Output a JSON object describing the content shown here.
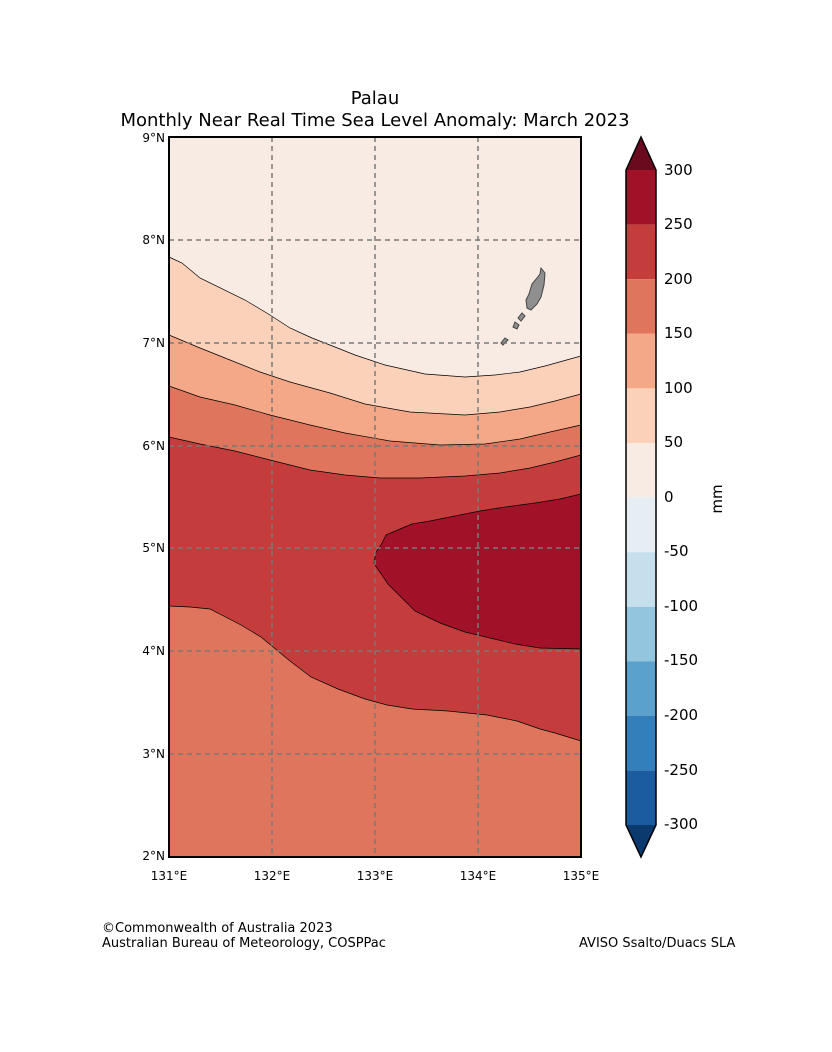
{
  "title_line1": "Palau",
  "title_line2": "Monthly Near Real Time Sea Level Anomaly: March 2023",
  "lat_ticks": [
    "9°N",
    "8°N",
    "7°N",
    "6°N",
    "5°N",
    "4°N",
    "3°N",
    "2°N"
  ],
  "lon_ticks": [
    "131°E",
    "132°E",
    "133°E",
    "134°E",
    "135°E"
  ],
  "colorbar": {
    "unit": "mm",
    "tick_labels": [
      "300",
      "250",
      "200",
      "150",
      "100",
      "50",
      "0",
      "-50",
      "-100",
      "-150",
      "-200",
      "-250",
      "-300"
    ],
    "colors": [
      "#6b0a1f",
      "#a11228",
      "#c43c3c",
      "#df755d",
      "#f5a887",
      "#fcd1ba",
      "#f8ebe4",
      "#e6eef3",
      "#c6dfed",
      "#93c5df",
      "#5aa1cd",
      "#327fbb",
      "#1b5ca1",
      "#0b3a6e"
    ]
  },
  "credit_line1": "©Commonwealth of Australia 2023",
  "credit_line2": "Australian Bureau of Meteorology, COSPPac",
  "source": "AVISO Ssalto/Duacs SLA",
  "map_colors": {
    "band_0_50": "#f8ebe4",
    "band_50_100": "#fcd1ba",
    "band_100_150": "#f5a887",
    "band_150_200": "#df755d",
    "band_200_250": "#c43c3c",
    "band_250_300": "#a11228",
    "land": "#8f8f8f"
  }
}
